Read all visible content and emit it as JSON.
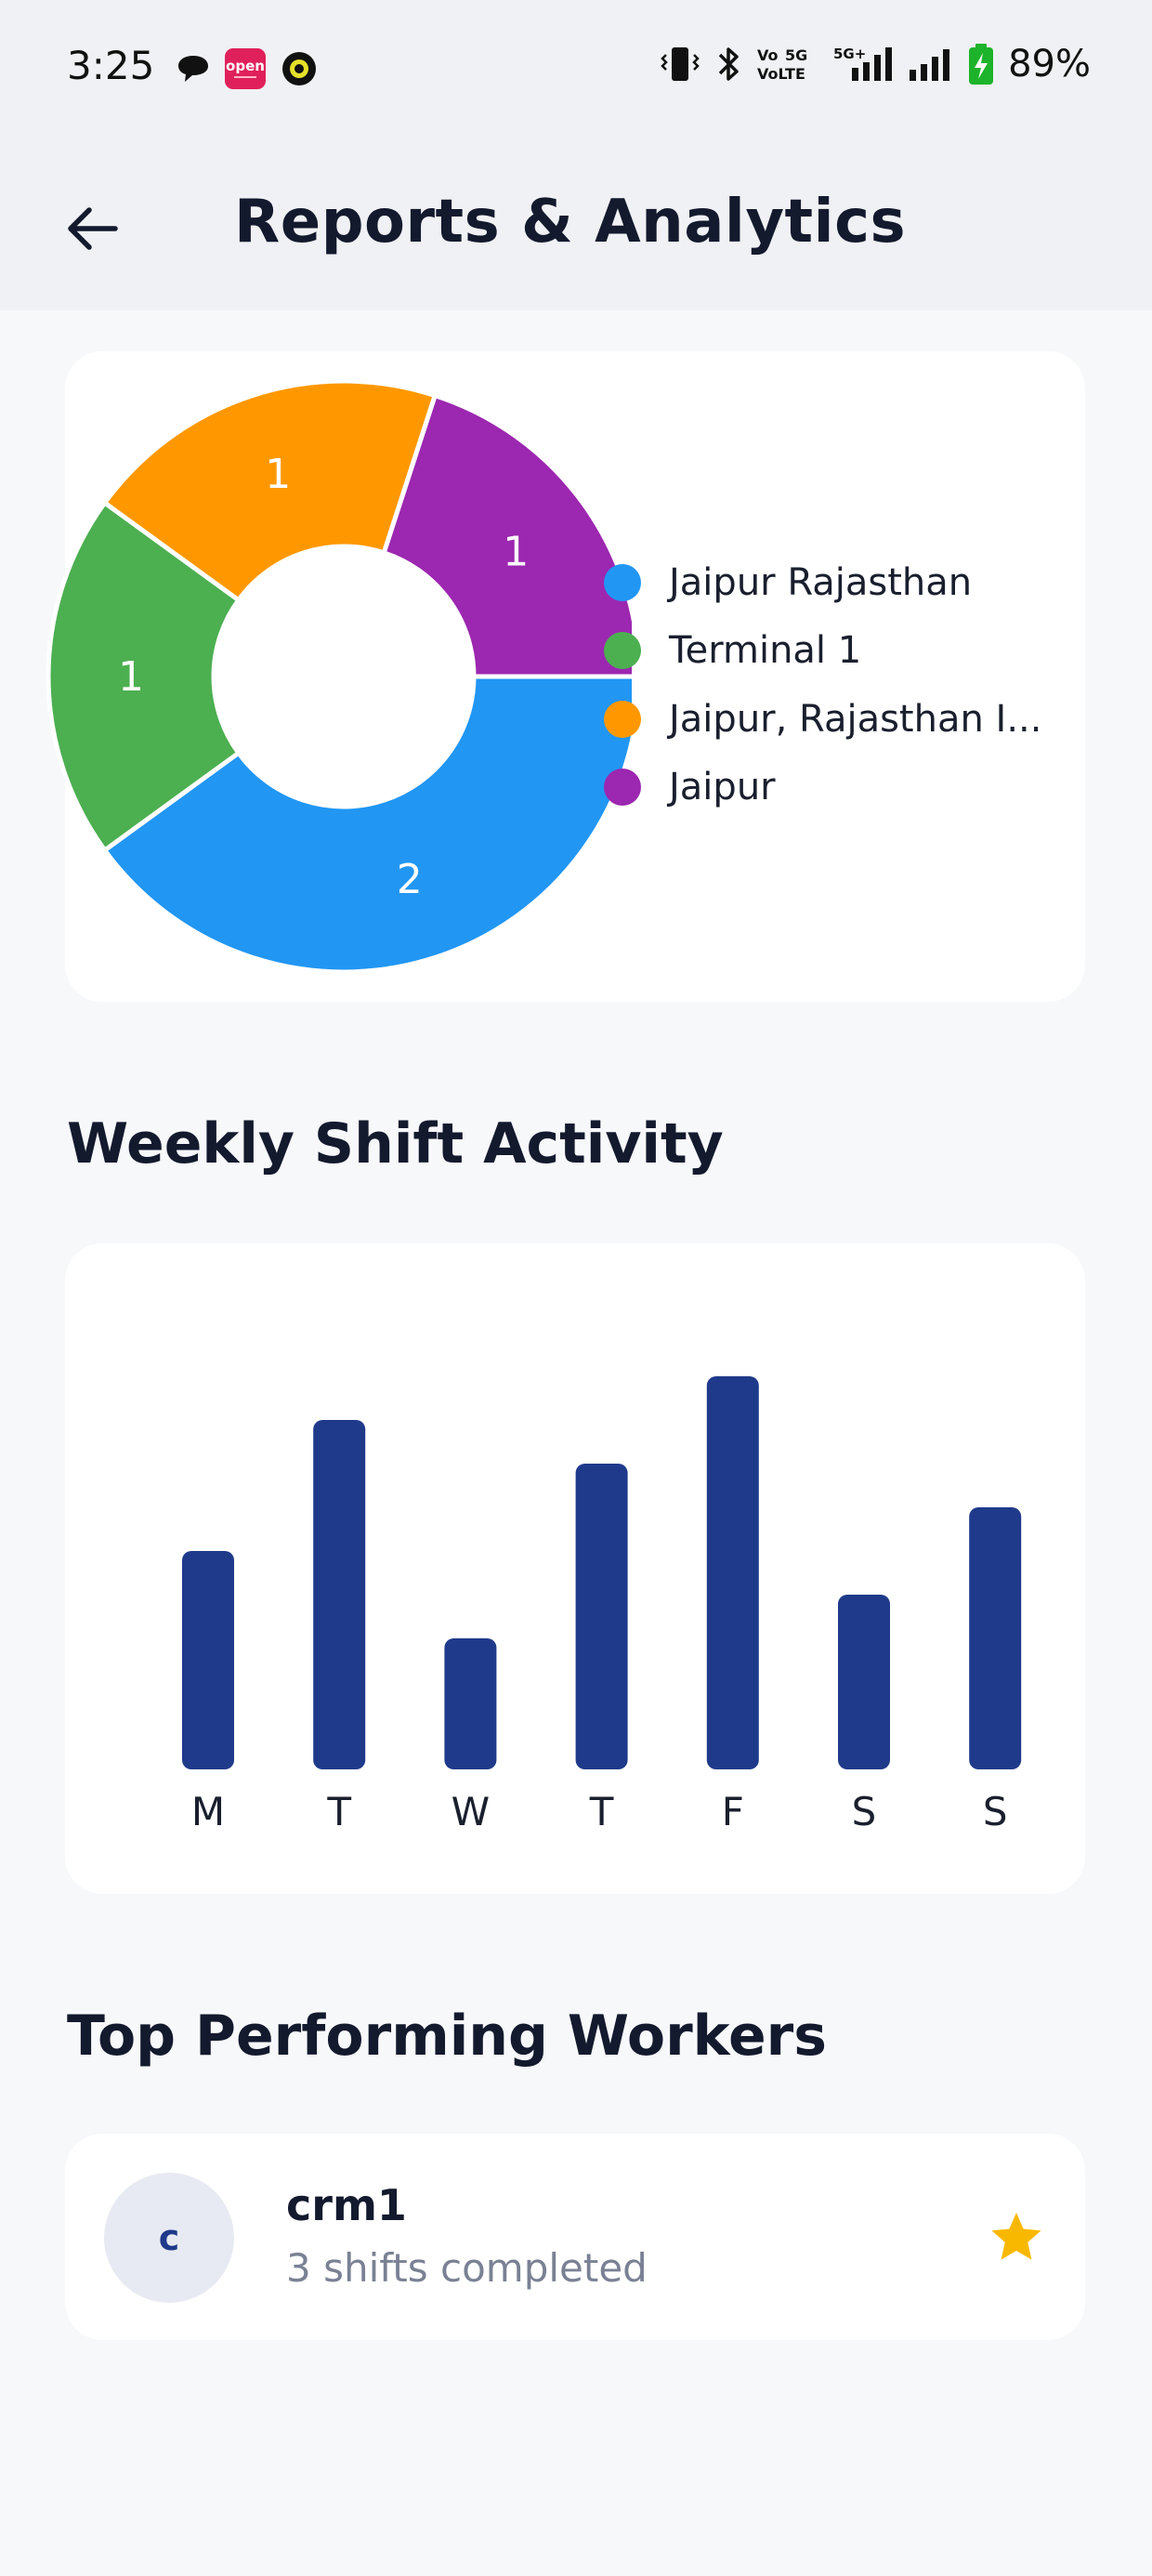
{
  "status_bar": {
    "time": "3:25",
    "battery": "89%",
    "network_labels": [
      "Vo",
      "5G",
      "VoLTE",
      "5G+"
    ],
    "app_icons": [
      "chat-bubble-icon",
      "open-app-icon",
      "ring-app-icon"
    ],
    "system_icons": [
      "vibrate-icon",
      "bluetooth-icon",
      "volte-icon",
      "signal-5g-icon",
      "signal-icon",
      "battery-charging-icon"
    ],
    "app_badge_text": "open"
  },
  "header": {
    "back_icon": "arrow-left-icon",
    "title": "Reports & Analytics"
  },
  "colors": {
    "blue": "#2196f3",
    "green": "#4caf50",
    "orange": "#ff9800",
    "purple": "#9c27b0",
    "bar": "#1f3a8a",
    "star": "#f9b800"
  },
  "location_chart": {
    "legend": [
      {
        "label": "Jaipur Rajasthan",
        "color": "#2196f3"
      },
      {
        "label": "Terminal 1",
        "color": "#4caf50"
      },
      {
        "label": "Jaipur, Rajasthan I...",
        "color": "#ff9800"
      },
      {
        "label": "Jaipur",
        "color": "#9c27b0"
      }
    ]
  },
  "weekly": {
    "title": "Weekly Shift Activity"
  },
  "chart_data": [
    {
      "type": "pie",
      "donut": true,
      "categories": [
        "Jaipur Rajasthan",
        "Terminal 1",
        "Jaipur, Rajasthan I...",
        "Jaipur"
      ],
      "values": [
        2,
        1,
        1,
        1
      ],
      "data_labels": [
        "2",
        "1",
        "1",
        "1"
      ],
      "colors": [
        "#2196f3",
        "#4caf50",
        "#ff9800",
        "#9c27b0"
      ],
      "legend_position": "right"
    },
    {
      "type": "bar",
      "categories": [
        "M",
        "T",
        "W",
        "T",
        "F",
        "S",
        "S"
      ],
      "values": [
        5,
        8,
        3,
        7,
        9,
        4,
        6
      ],
      "ylim": [
        0,
        10
      ],
      "grid": false
    }
  ],
  "top_workers": {
    "title": "Top Performing Workers",
    "items": [
      {
        "initial": "c",
        "name": "crm1",
        "subtitle": "3 shifts completed",
        "icon": "star-icon"
      }
    ]
  }
}
